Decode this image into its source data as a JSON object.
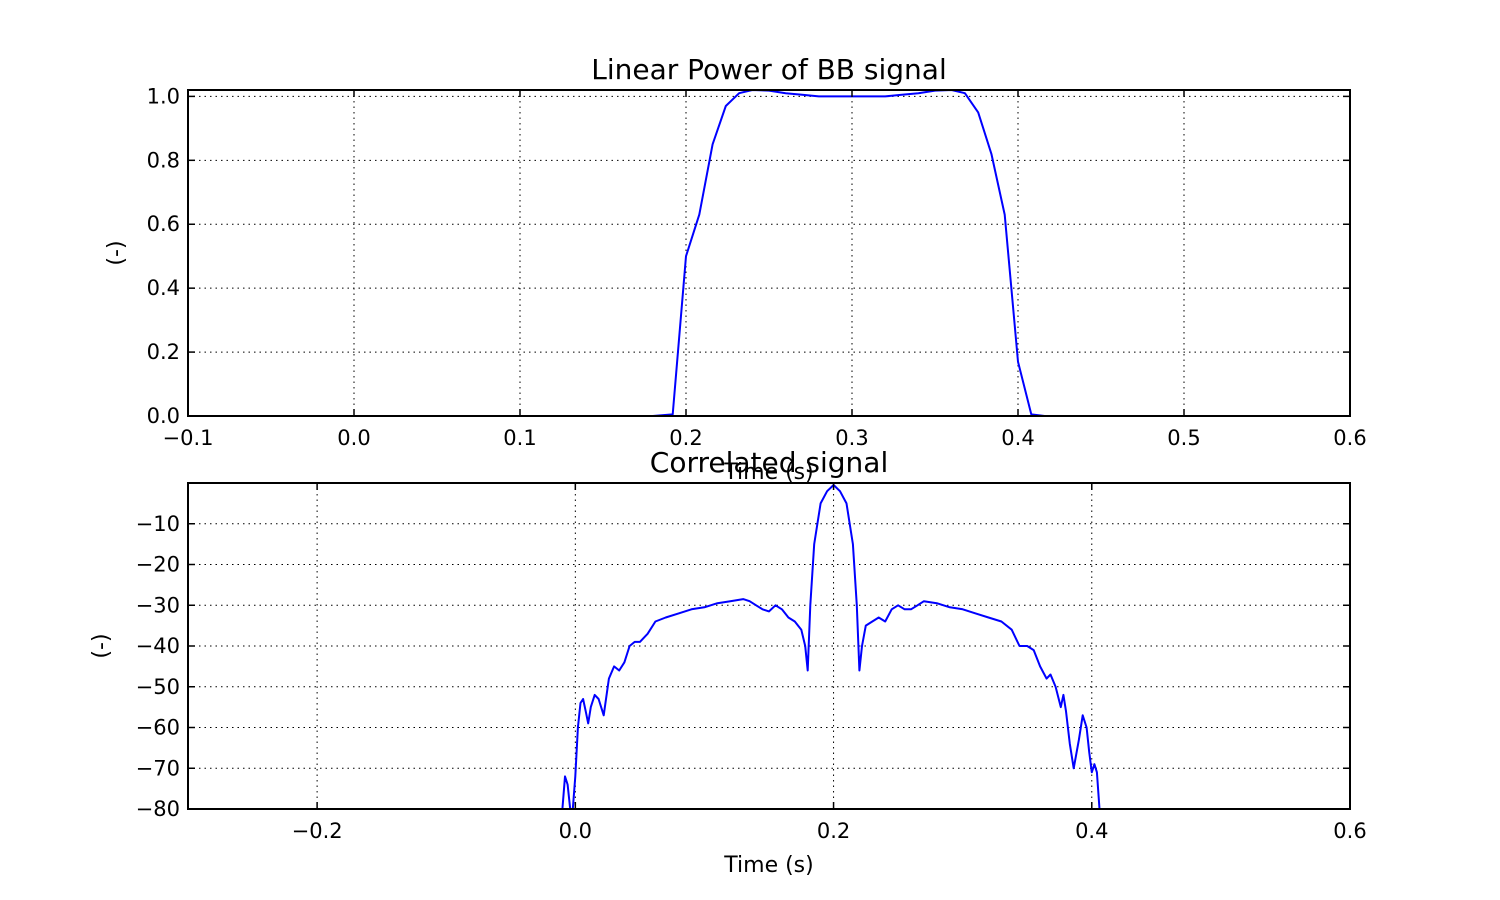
{
  "chart_data": [
    {
      "type": "line",
      "title": "Linear Power of BB signal",
      "xlabel": "Time (s)",
      "ylabel": "(-)",
      "xlim": [
        -0.1,
        0.6
      ],
      "ylim": [
        0.0,
        1.02
      ],
      "xticks": [
        -0.1,
        0.0,
        0.1,
        0.2,
        0.3,
        0.4,
        0.5,
        0.6
      ],
      "xtick_labels": [
        "−0.1",
        "0.0",
        "0.1",
        "0.2",
        "0.3",
        "0.4",
        "0.5",
        "0.6"
      ],
      "yticks": [
        0.0,
        0.2,
        0.4,
        0.6,
        0.8,
        1.0
      ],
      "ytick_labels": [
        "0.0",
        "0.2",
        "0.4",
        "0.6",
        "0.8",
        "1.0"
      ],
      "grid": true,
      "color": "#0000ff",
      "series": [
        {
          "x": [
            -0.1,
            0.18,
            0.192,
            0.2,
            0.208,
            0.216,
            0.224,
            0.232,
            0.24,
            0.25,
            0.26,
            0.27,
            0.28,
            0.29,
            0.3,
            0.31,
            0.32,
            0.33,
            0.34,
            0.35,
            0.36,
            0.368,
            0.376,
            0.384,
            0.392,
            0.4,
            0.408,
            0.416,
            0.6
          ],
          "y": [
            0.0,
            0.0,
            0.005,
            0.5,
            0.63,
            0.85,
            0.97,
            1.01,
            1.02,
            1.018,
            1.01,
            1.005,
            1.0,
            1.0,
            1.0,
            1.0,
            1.0,
            1.005,
            1.01,
            1.018,
            1.02,
            1.01,
            0.95,
            0.82,
            0.63,
            0.17,
            0.005,
            0.0,
            0.0
          ]
        }
      ]
    },
    {
      "type": "line",
      "title": "Correlated signal",
      "xlabel": "Time (s)",
      "ylabel": "(-)",
      "xlim": [
        -0.3,
        0.6
      ],
      "ylim": [
        -80,
        0
      ],
      "xticks": [
        -0.2,
        0.0,
        0.2,
        0.4,
        0.6
      ],
      "xtick_labels": [
        "−0.2",
        "0.0",
        "0.2",
        "0.4",
        "0.6"
      ],
      "yticks": [
        -10,
        -20,
        -30,
        -40,
        -50,
        -60,
        -70,
        -80
      ],
      "ytick_labels": [
        "−10",
        "−20",
        "−30",
        "−40",
        "−50",
        "−60",
        "−70",
        "−80"
      ],
      "grid": true,
      "color": "#0000ff",
      "series": [
        {
          "x": [
            -0.01,
            -0.008,
            -0.006,
            -0.004,
            -0.002,
            0.0,
            0.002,
            0.004,
            0.006,
            0.008,
            0.01,
            0.012,
            0.015,
            0.018,
            0.022,
            0.026,
            0.03,
            0.034,
            0.038,
            0.042,
            0.046,
            0.05,
            0.056,
            0.062,
            0.07,
            0.08,
            0.09,
            0.1,
            0.11,
            0.12,
            0.13,
            0.135,
            0.14,
            0.145,
            0.15,
            0.155,
            0.16,
            0.165,
            0.17,
            0.175,
            0.178,
            0.18,
            0.182,
            0.185,
            0.19,
            0.195,
            0.2,
            0.205,
            0.21,
            0.215,
            0.218,
            0.22,
            0.222,
            0.225,
            0.23,
            0.235,
            0.24,
            0.245,
            0.25,
            0.255,
            0.26,
            0.265,
            0.27,
            0.28,
            0.29,
            0.3,
            0.31,
            0.32,
            0.33,
            0.338,
            0.344,
            0.35,
            0.355,
            0.36,
            0.365,
            0.368,
            0.372,
            0.376,
            0.378,
            0.38,
            0.383,
            0.386,
            0.39,
            0.393,
            0.396,
            0.398,
            0.4,
            0.402,
            0.404,
            0.406,
            0.408,
            0.41
          ],
          "y": [
            -80,
            -72,
            -74,
            -80,
            -80,
            -72,
            -60,
            -54,
            -53,
            -56,
            -59,
            -55,
            -52,
            -53,
            -57,
            -48,
            -45,
            -46,
            -44,
            -40,
            -39,
            -39,
            -37,
            -34,
            -33,
            -32,
            -31,
            -30.5,
            -29.5,
            -29,
            -28.5,
            -29,
            -30,
            -31,
            -31.5,
            -30,
            -31,
            -33,
            -34,
            -36,
            -40,
            -46,
            -30,
            -15,
            -5,
            -2,
            -0.5,
            -2,
            -5,
            -15,
            -30,
            -46,
            -40,
            -35,
            -34,
            -33,
            -34,
            -31,
            -30,
            -31,
            -31,
            -30,
            -29,
            -29.5,
            -30.5,
            -31,
            -32,
            -33,
            -34,
            -36,
            -40,
            -40,
            -41,
            -45,
            -48,
            -47,
            -50,
            -55,
            -52,
            -56,
            -64,
            -70,
            -63,
            -57,
            -60,
            -66,
            -71,
            -69,
            -71,
            -80,
            -80,
            -80
          ]
        }
      ]
    }
  ]
}
